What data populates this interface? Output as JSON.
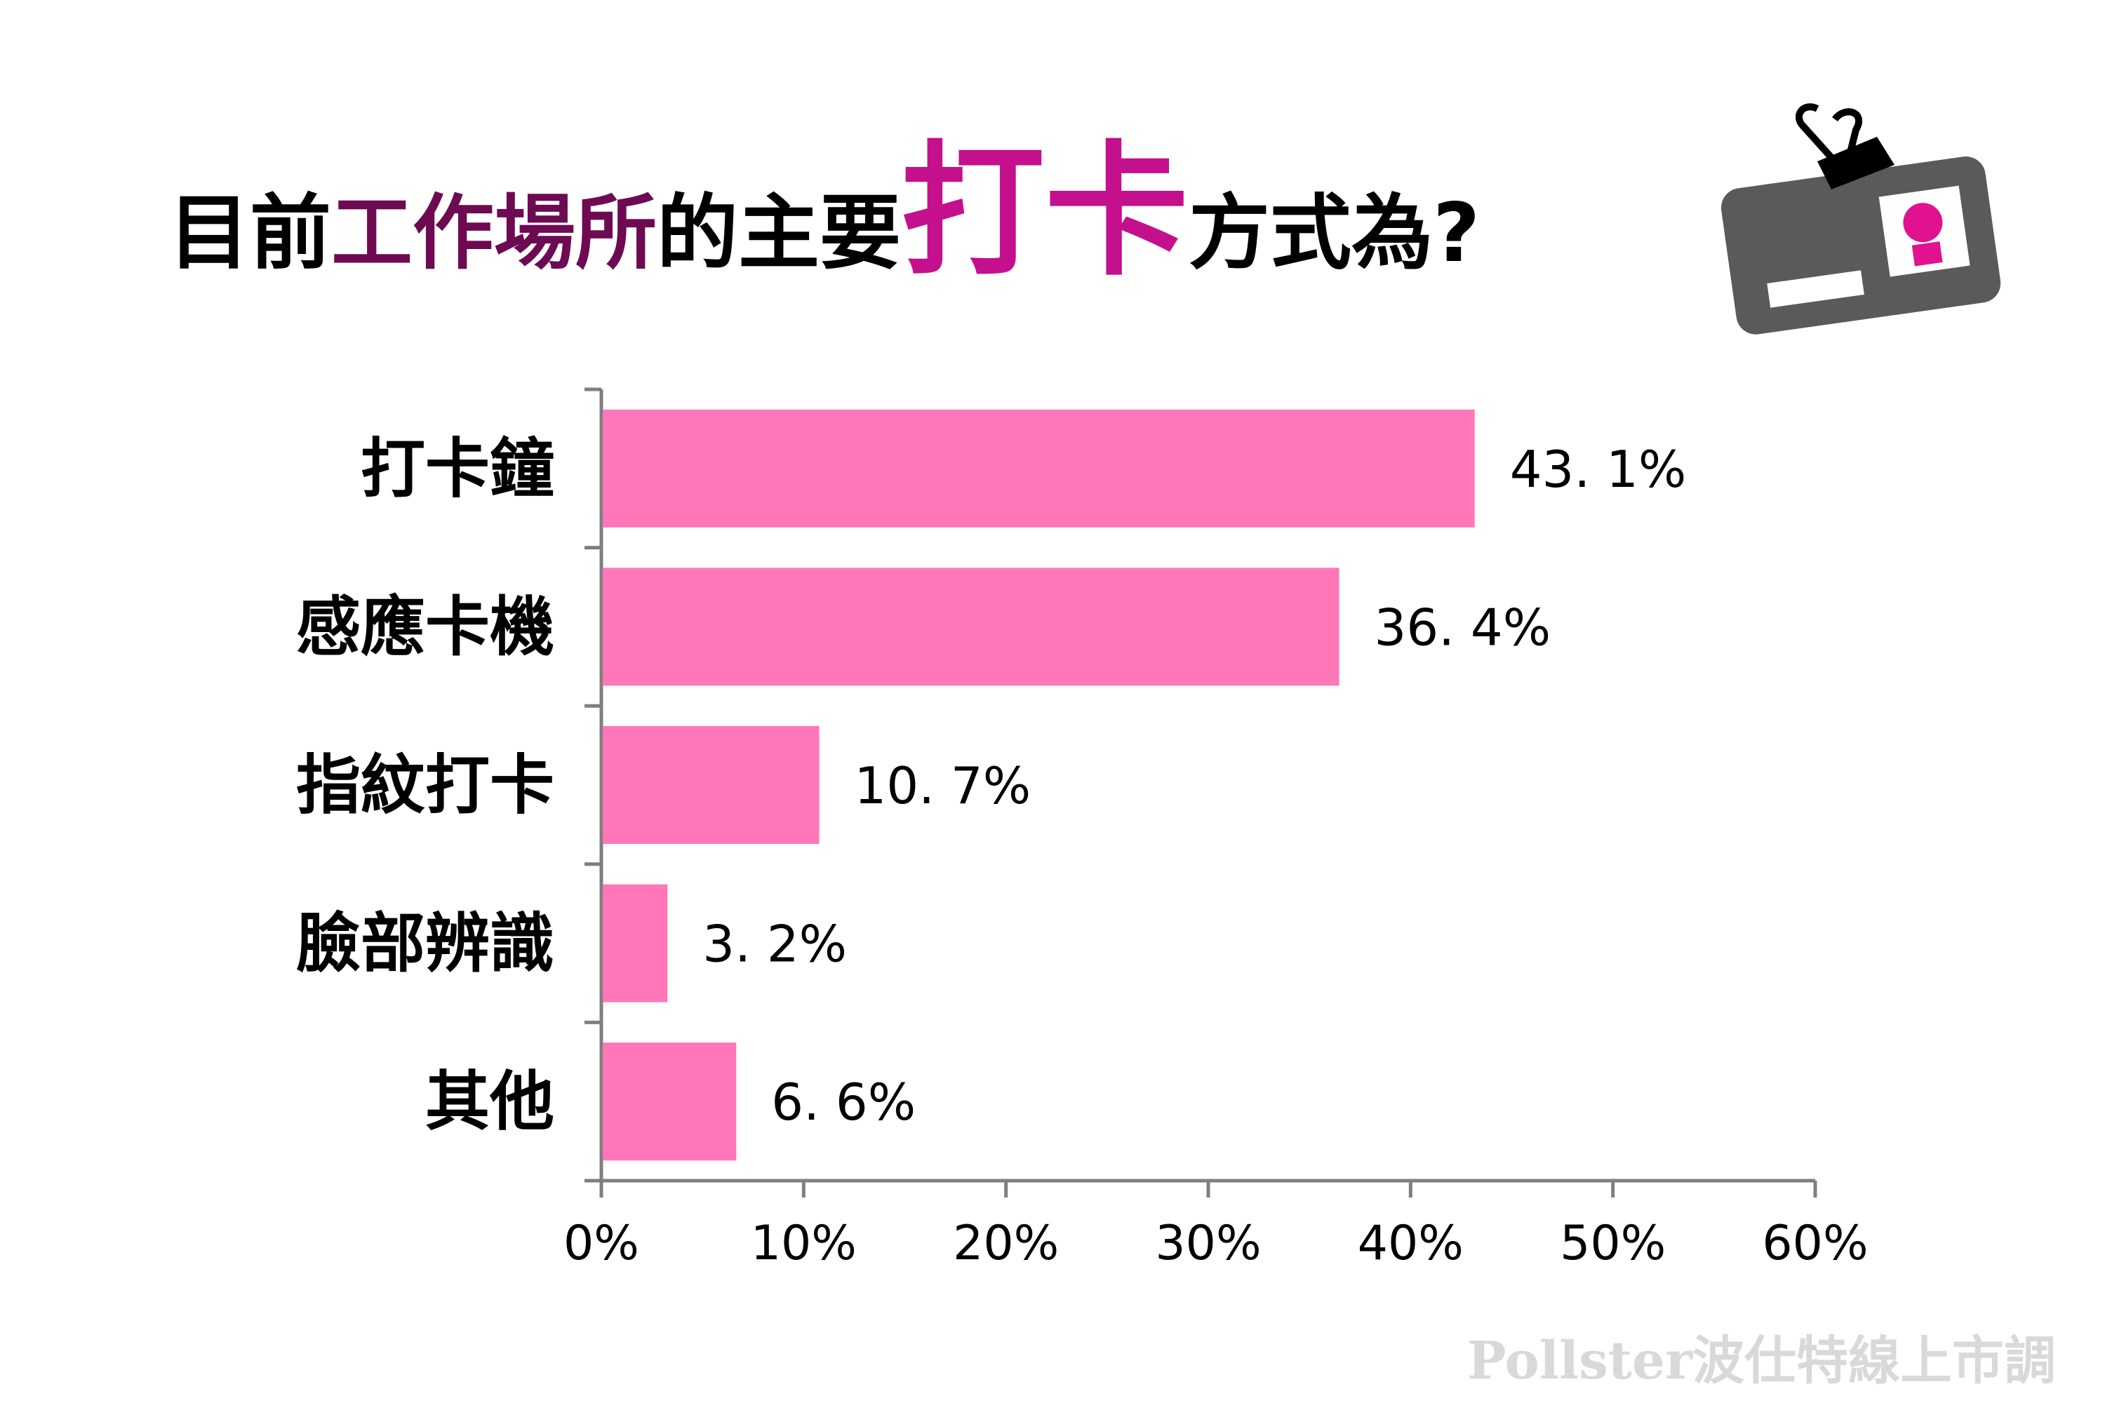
{
  "title": {
    "part1": "目前",
    "part2": "工作場所",
    "part3": "的主要",
    "part4": "打卡",
    "part5": "方式為",
    "part6": "?"
  },
  "watermark": "Pollster波仕特線上市調",
  "colors": {
    "bar": "#ff77b8",
    "axis": "#7f7f7f",
    "title_purple": "#6e0a52",
    "title_magenta": "#c4108c",
    "badge_gray": "#5a5a5a",
    "badge_accent": "#e0128f"
  },
  "chart_data": {
    "type": "bar",
    "orientation": "horizontal",
    "categories": [
      "打卡鐘",
      "感應卡機",
      "指紋打卡",
      "臉部辨識",
      "其他"
    ],
    "values": [
      43.1,
      36.4,
      10.7,
      3.2,
      6.6
    ],
    "value_labels": [
      "43. 1%",
      "36. 4%",
      "10. 7%",
      "3. 2%",
      "6. 6%"
    ],
    "xlim": [
      0,
      60
    ],
    "x_ticks": [
      0,
      10,
      20,
      30,
      40,
      50,
      60
    ],
    "x_tick_labels": [
      "0%",
      "10%",
      "20%",
      "30%",
      "40%",
      "50%",
      "60%"
    ],
    "grid": false,
    "legend": "none"
  }
}
